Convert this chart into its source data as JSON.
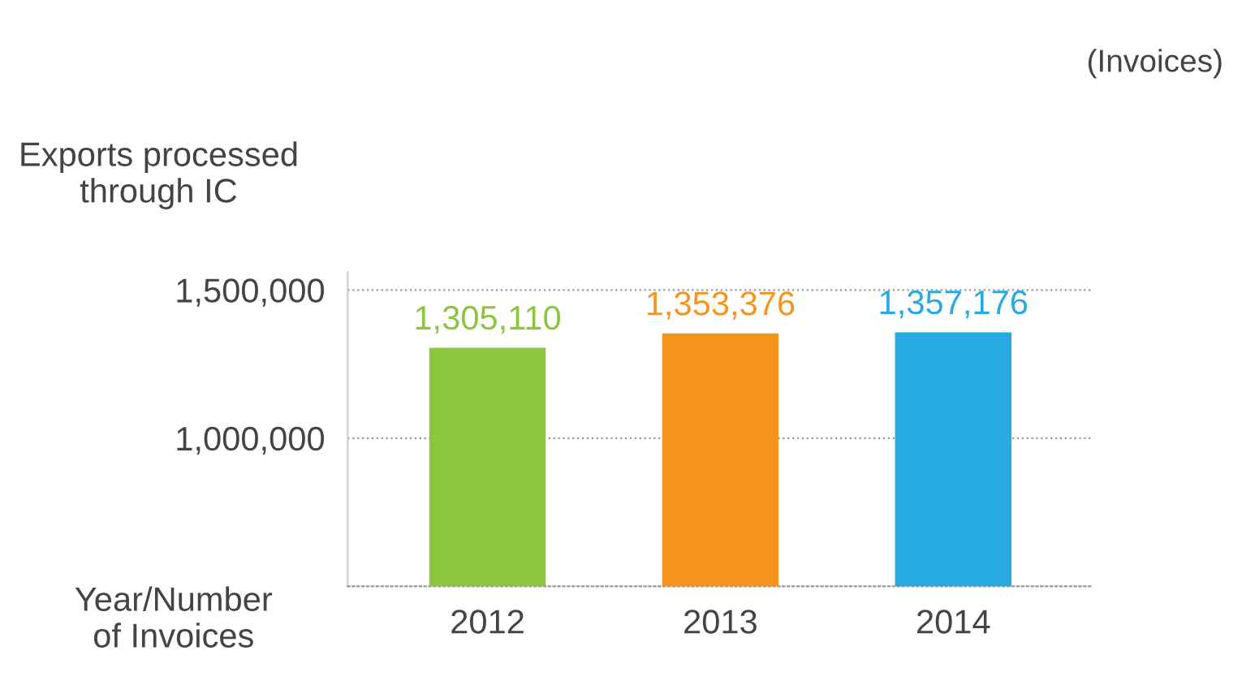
{
  "chart_data": {
    "type": "bar",
    "title": null,
    "ylabel": "Exports processed\nthrough IC",
    "xlabel": "Year/Number\nof Invoices",
    "annotations": [
      "(Invoices)"
    ],
    "categories": [
      "2012",
      "2013",
      "2014"
    ],
    "values": [
      1305110,
      1353376,
      1357176
    ],
    "value_labels": [
      "1,305,110",
      "1,353,376",
      "1,357,176"
    ],
    "colors": [
      "#8cc63f",
      "#f7941d",
      "#27aae1"
    ],
    "ylim": [
      500000,
      1560000
    ],
    "yticks": [
      {
        "value": 1000000,
        "label": "1,000,000"
      },
      {
        "value": 1500000,
        "label": "1,500,000"
      }
    ],
    "grid": "y",
    "legend": false
  }
}
